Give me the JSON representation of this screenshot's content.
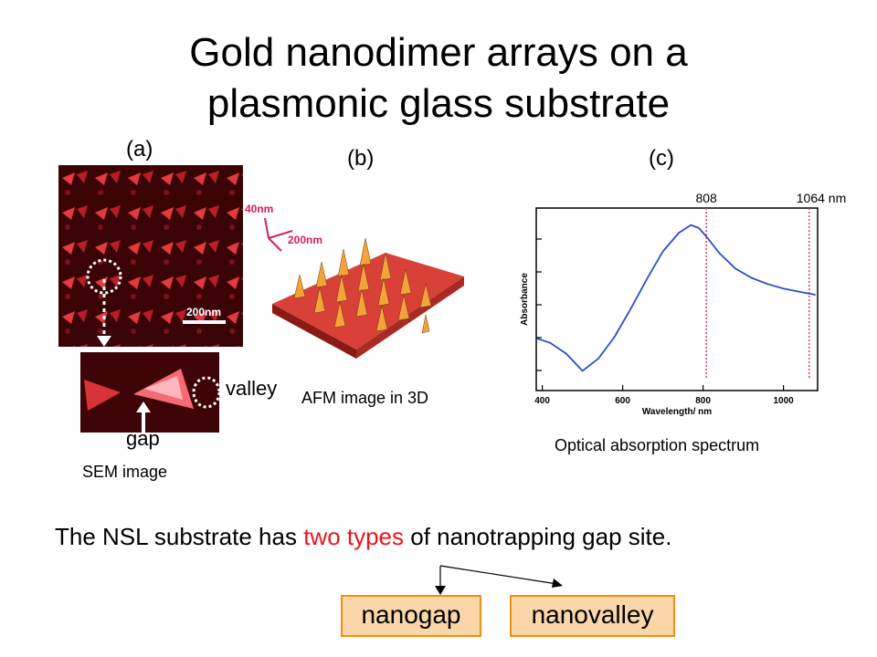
{
  "slide": {
    "title_line1": "Gold nanodimer arrays on a",
    "title_line2": "plasmonic glass substrate"
  },
  "panel_a": {
    "letter": "(a)",
    "scale_bar": "200nm",
    "valley_label": "valley",
    "gap_label": "gap",
    "caption": "SEM image"
  },
  "panel_b": {
    "letter": "(b)",
    "axis_z": "40nm",
    "axis_xy": "200nm",
    "caption": "AFM image in 3D"
  },
  "panel_c": {
    "letter": "(c)",
    "caption": "Optical absorption spectrum"
  },
  "chart_data": {
    "type": "line",
    "title": "",
    "xlabel": "Wavelength/ nm",
    "ylabel": "Absorbance",
    "xlim": [
      385,
      1085
    ],
    "x_ticks": [
      400,
      600,
      800,
      1000
    ],
    "y_ticks_labeled": false,
    "grid": false,
    "reference_lines": [
      {
        "x": 808,
        "label": "808"
      },
      {
        "x": 1064,
        "label": "1064 nm"
      }
    ],
    "series": [
      {
        "color": "#2a4fc8",
        "x": [
          385,
          420,
          460,
          500,
          540,
          580,
          620,
          660,
          700,
          740,
          770,
          790,
          810,
          840,
          880,
          920,
          960,
          1000,
          1040,
          1080
        ],
        "y": [
          0.29,
          0.26,
          0.19,
          0.08,
          0.16,
          0.3,
          0.48,
          0.67,
          0.85,
          0.97,
          1.02,
          1.0,
          0.94,
          0.84,
          0.74,
          0.68,
          0.64,
          0.61,
          0.59,
          0.57
        ]
      }
    ]
  },
  "bottom": {
    "sentence_pre": "The NSL substrate has ",
    "sentence_highlight": "two types",
    "sentence_post": " of nanotrapping gap site.",
    "box1": "nanogap",
    "box2": "nanovalley",
    "highlight_color": "#e8161c"
  }
}
